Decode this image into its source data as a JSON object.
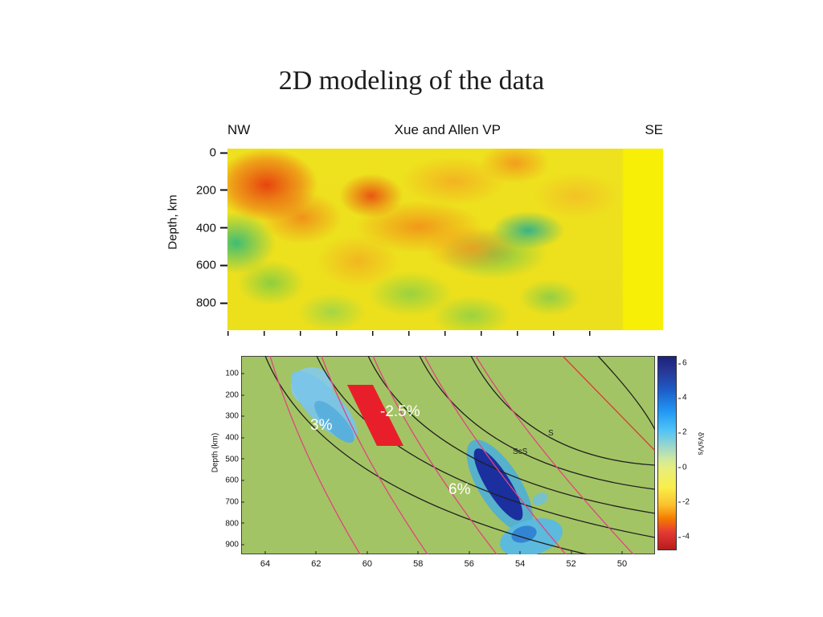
{
  "slide": {
    "title": "2D modeling of the data"
  },
  "chart_data": [
    {
      "type": "heatmap",
      "title": "Xue and Allen VP",
      "section_direction": {
        "left": "NW",
        "right": "SE"
      },
      "xlabel": "",
      "ylabel": "Depth, km",
      "yticks": [
        0,
        200,
        400,
        600,
        800
      ],
      "ylim": [
        0,
        950
      ],
      "legend": "none",
      "grid": false,
      "palette": {
        "slow_anomaly": "#e8601a",
        "neutral": "#ece01d",
        "fast_anomaly": "#55c080"
      },
      "features": [
        {
          "kind": "slow anomaly (red-orange)",
          "x_frac": 0.1,
          "depth_km": 180
        },
        {
          "kind": "slow anomaly (red-orange)",
          "x_frac": 0.33,
          "depth_km": 240
        },
        {
          "kind": "slow diagonal band (orange)",
          "x_frac": 0.48,
          "depth_km": 430
        },
        {
          "kind": "fast anomaly (green-teal)",
          "x_frac": 0.02,
          "depth_km": 500
        },
        {
          "kind": "fast anomaly (teal)",
          "x_frac": 0.69,
          "depth_km": 430
        },
        {
          "kind": "fast anomaly (green)",
          "x_frac": 0.61,
          "depth_km": 550
        },
        {
          "kind": "fast anomaly (green)",
          "x_frac": 0.42,
          "depth_km": 760
        },
        {
          "kind": "unmodeled strip (solid yellow)",
          "x_frac": 0.95,
          "depth_km": null
        }
      ]
    },
    {
      "type": "heatmap",
      "title": "",
      "xlabel": "",
      "ylabel": "Depth (km)",
      "yticks": [
        100,
        200,
        300,
        400,
        500,
        600,
        700,
        800,
        900
      ],
      "ylim": [
        0,
        950
      ],
      "xticks": [
        64,
        62,
        60,
        58,
        56,
        54,
        52,
        50
      ],
      "xlim": [
        65,
        49.3
      ],
      "x_axis_reversed": true,
      "background_color": "#a3c464",
      "grid": false,
      "annotations": [
        {
          "text": "3%",
          "color": "#ffffff",
          "x_deg": 61.8,
          "depth_km": 325
        },
        {
          "text": "-2.5%",
          "color": "#ffffff",
          "x_deg": 58.3,
          "depth_km": 260
        },
        {
          "text": "6%",
          "color": "#ffffff",
          "x_deg": 56.3,
          "depth_km": 635
        },
        {
          "text": "S",
          "color": "#222222",
          "x_deg": 52.7,
          "depth_km": 375
        },
        {
          "text": "ScS",
          "color": "#222222",
          "x_deg": 53.9,
          "depth_km": 460
        }
      ],
      "bodies": [
        {
          "shape": "elongated blob",
          "color": "light blue",
          "amplitude_pct": 3,
          "x_deg_range": [
            62.6,
            60.4
          ],
          "depth_km_range": [
            50,
            430
          ]
        },
        {
          "shape": "parallelogram",
          "color": "red",
          "amplitude_pct": -2.5,
          "x_deg_range": [
            60.8,
            57.9
          ],
          "depth_km_range": [
            140,
            420
          ]
        },
        {
          "shape": "elongated blob",
          "color": "dark blue",
          "amplitude_pct": 6,
          "x_deg_range": [
            55.9,
            53.7
          ],
          "depth_km_range": [
            420,
            820
          ]
        },
        {
          "shape": "blob",
          "color": "cyan",
          "x_deg_range": [
            54.3,
            52.0
          ],
          "depth_km_range": [
            760,
            940
          ]
        }
      ],
      "ray_curves": {
        "colors": [
          "black",
          "pink",
          "red"
        ],
        "black_count": 6,
        "pink_count": 6,
        "phase_labels": [
          "S",
          "ScS"
        ]
      },
      "colorbar": {
        "label": "δVs/Vs",
        "ticks": [
          6,
          4,
          2,
          0,
          -2,
          -4
        ],
        "top_color": "#1a237e",
        "zero_color": "#cfe8a0",
        "bottom_color": "#b71c1c",
        "position": "right"
      }
    }
  ]
}
